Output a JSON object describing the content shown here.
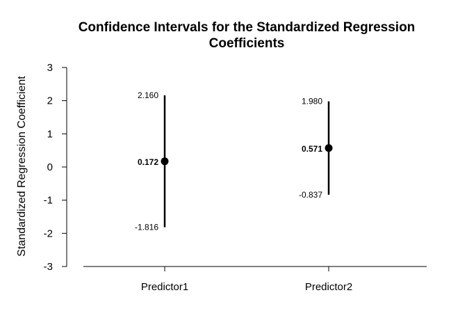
{
  "chart_data": {
    "type": "errorbar",
    "title": [
      "Confidence Intervals for the Standardized Regression",
      "Coefficients"
    ],
    "xlabel": "",
    "ylabel": "Standardized Regression Coefficient",
    "ylim": [
      -3,
      3
    ],
    "yticks": [
      "3",
      "2",
      "1",
      "0",
      "-1",
      "-2",
      "-3"
    ],
    "ytick_values": [
      3,
      2,
      1,
      0,
      -1,
      -2,
      -3
    ],
    "categories": [
      "Predictor1",
      "Predictor2"
    ],
    "estimates": [
      0.172,
      0.571
    ],
    "lower": [
      -1.816,
      -0.837
    ],
    "upper": [
      2.16,
      1.98
    ],
    "estimate_labels": [
      "0.172",
      "0.571"
    ],
    "lower_labels": [
      "-1.816",
      "-0.837"
    ],
    "upper_labels": [
      "2.160",
      "1.980"
    ],
    "grid": false,
    "color": "#000000"
  }
}
